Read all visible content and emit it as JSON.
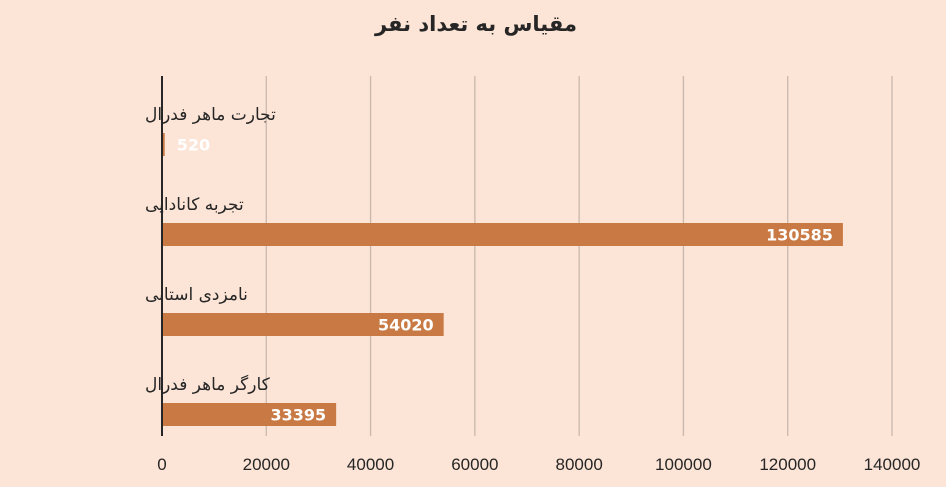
{
  "chart_data": {
    "type": "bar",
    "orientation": "horizontal",
    "title": "مقیاس به تعداد نفر",
    "categories": [
      "تجارت ماهر فدرال",
      "تجربه کانادایی",
      "نامزدی استانی",
      "کارگر ماهر فدرال"
    ],
    "values": [
      520,
      130585,
      54020,
      33395
    ],
    "data_labels": [
      "520",
      "130585",
      "54020",
      "33395"
    ],
    "xlim": [
      0,
      140000
    ],
    "x_ticks": [
      0,
      20000,
      40000,
      60000,
      80000,
      100000,
      120000,
      140000
    ],
    "x_tick_labels": [
      "0",
      "20000",
      "40000",
      "60000",
      "80000",
      "100000",
      "120000",
      "140000"
    ],
    "grid": true,
    "legend": "none",
    "colors": {
      "bar": "#c97a44",
      "background": "#fce4d6",
      "text": "#262626",
      "data_label": "#ffffff"
    }
  }
}
